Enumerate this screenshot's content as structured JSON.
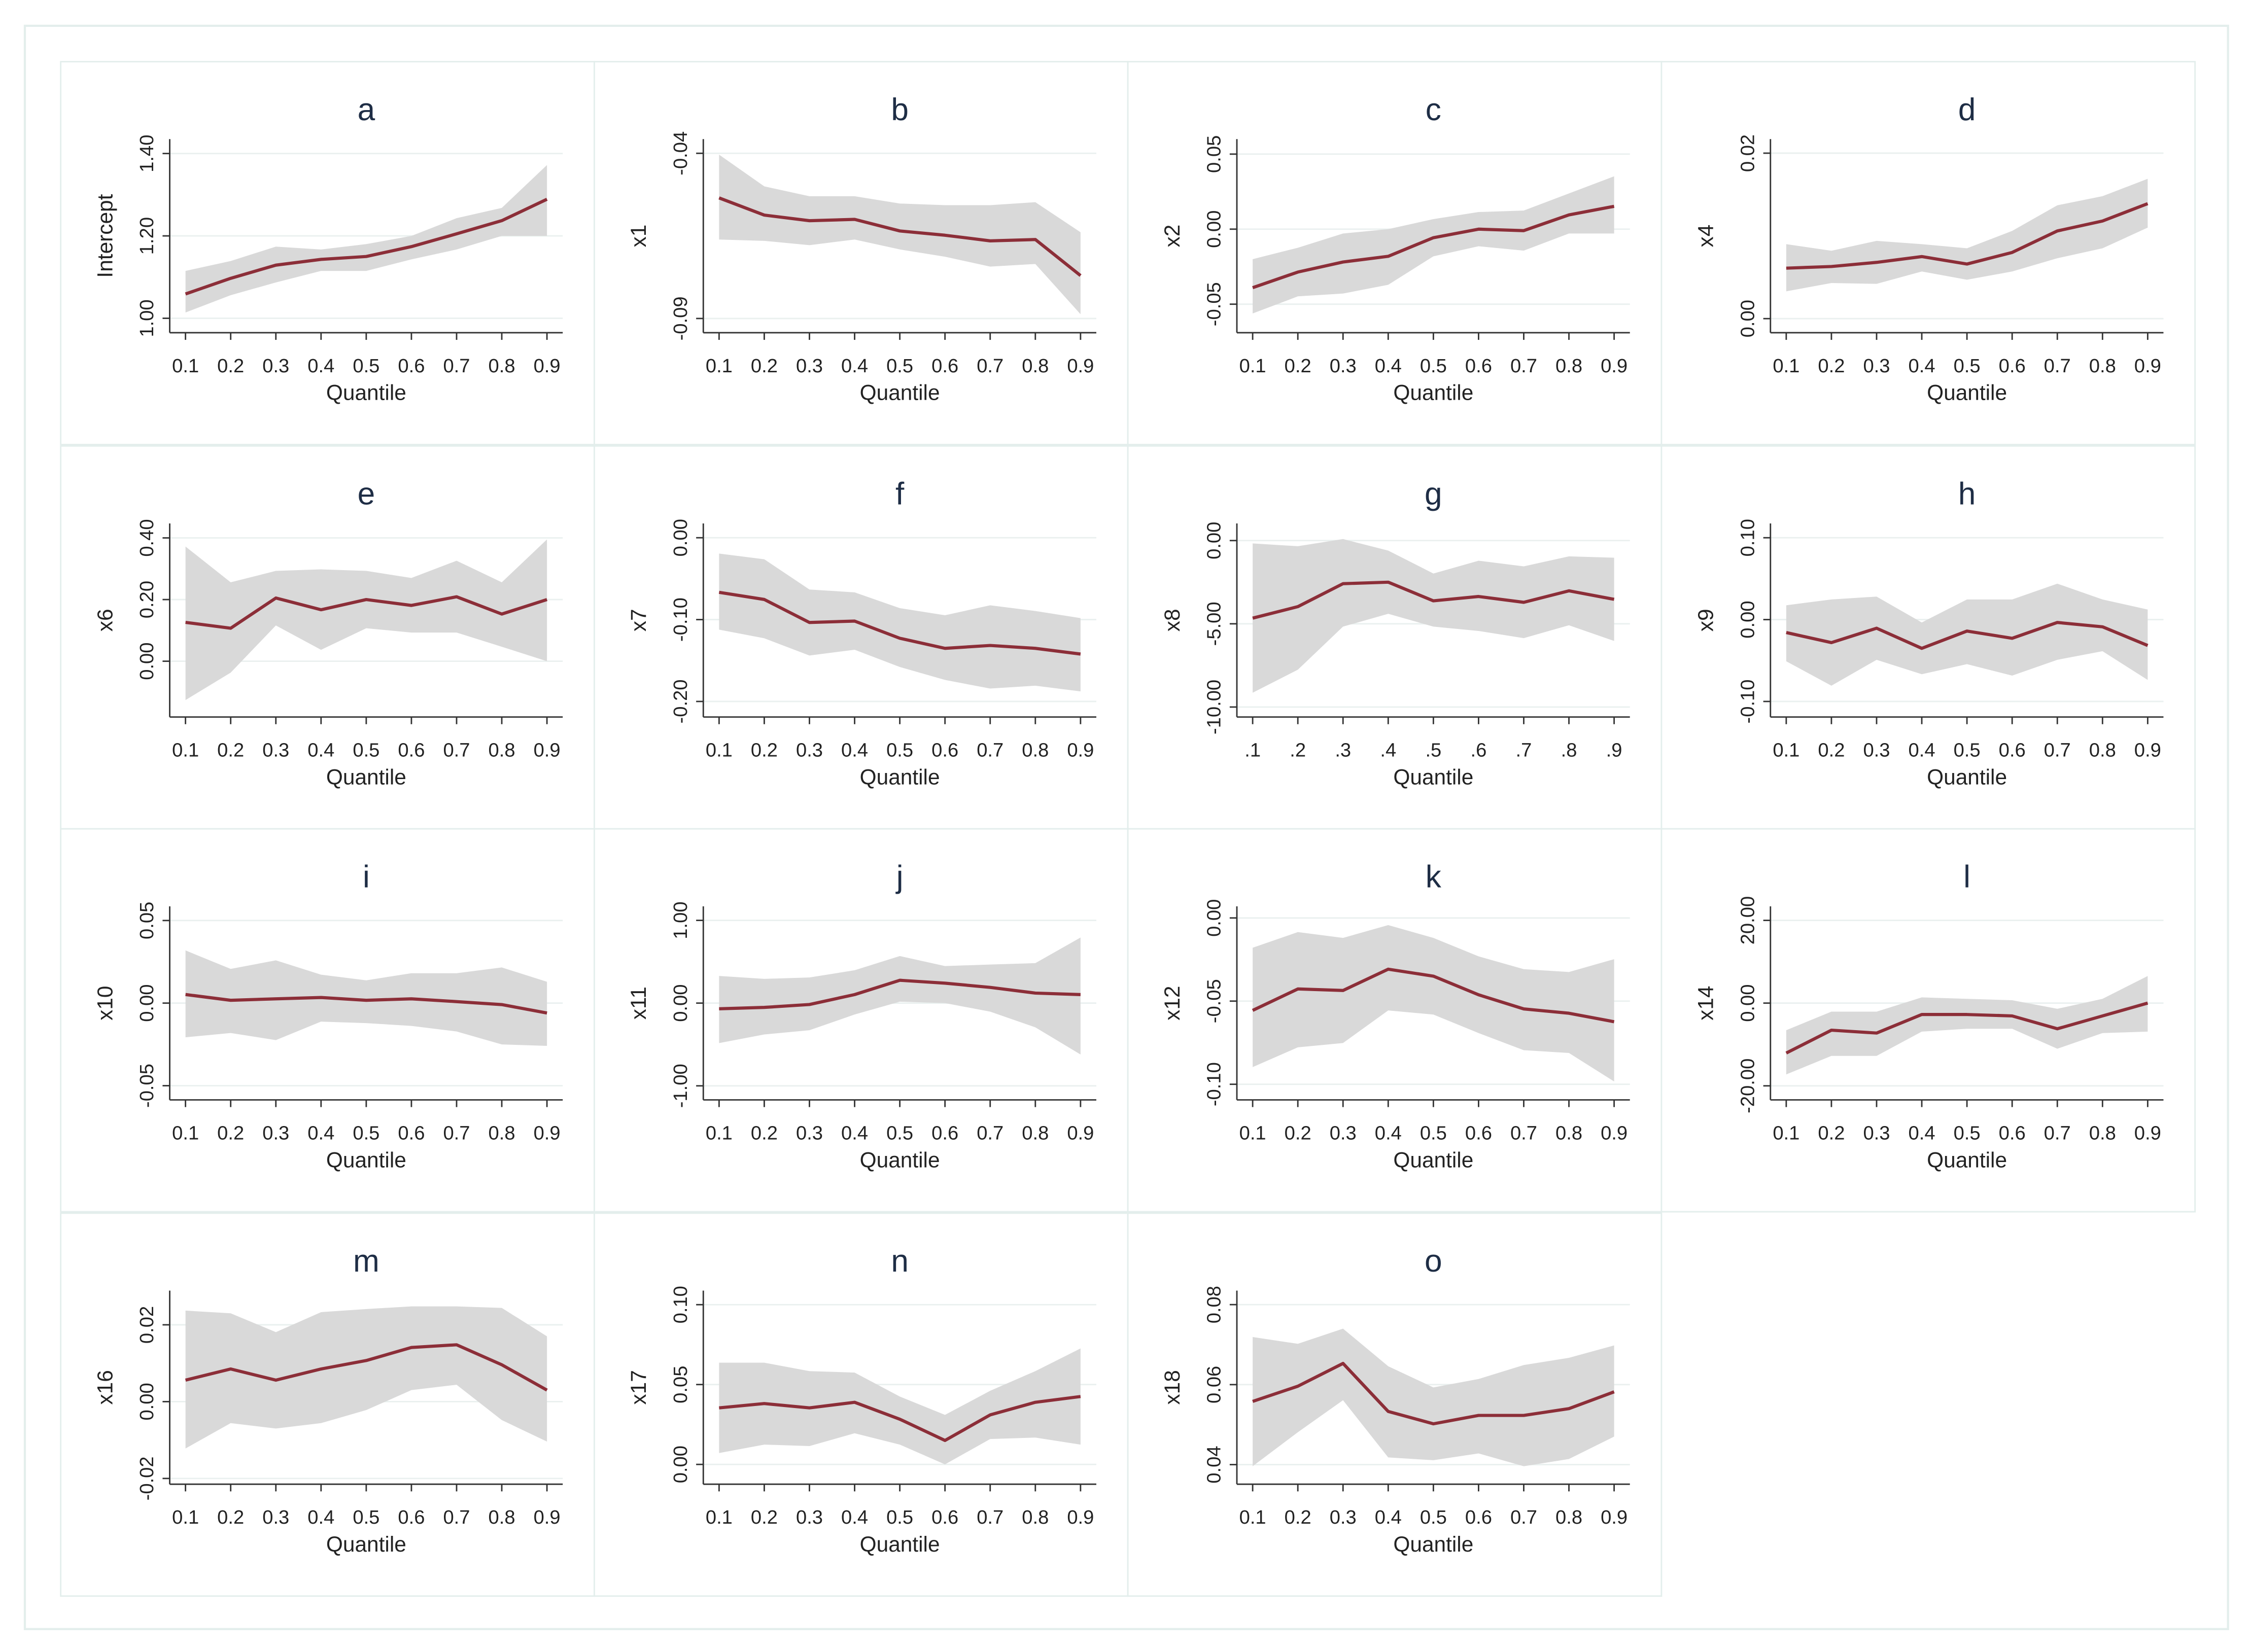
{
  "chart_data": [
    {
      "type": "line",
      "title": "a",
      "ylabel": "Intercept",
      "xlabel": "Quantile",
      "categories": [
        "0.1",
        "0.2",
        "0.3",
        "0.4",
        "0.5",
        "0.6",
        "0.7",
        "0.8",
        "0.9"
      ],
      "values": [
        1.059,
        1.097,
        1.129,
        1.143,
        1.15,
        1.174,
        1.205,
        1.237,
        1.289
      ],
      "lower": [
        1.014,
        1.056,
        1.087,
        1.115,
        1.115,
        1.143,
        1.167,
        1.2,
        1.2
      ],
      "upper": [
        1.115,
        1.139,
        1.174,
        1.167,
        1.18,
        1.2,
        1.243,
        1.268,
        1.372
      ],
      "color": "#8c2e38",
      "band_color": "#d9d9d9",
      "ylim": [
        0.965,
        1.435
      ],
      "yticks": [
        {
          "value": 1,
          "label": "1.00"
        },
        {
          "value": 1.2,
          "label": "1.20"
        },
        {
          "value": 1.4,
          "label": "1.40"
        }
      ],
      "grid": true
    },
    {
      "type": "line",
      "title": "b",
      "ylabel": "x1",
      "xlabel": "Quantile",
      "categories": [
        "0.1",
        "0.2",
        "0.3",
        "0.4",
        "0.5",
        "0.6",
        "0.7",
        "0.8",
        "0.9"
      ],
      "values": [
        -0.0535,
        -0.0587,
        -0.0604,
        -0.06,
        -0.0635,
        -0.0648,
        -0.0665,
        -0.0661,
        -0.077
      ],
      "lower": [
        -0.0661,
        -0.0665,
        -0.0678,
        -0.0661,
        -0.0691,
        -0.0713,
        -0.0743,
        -0.0735,
        -0.0887
      ],
      "upper": [
        -0.0404,
        -0.05,
        -0.053,
        -0.053,
        -0.0552,
        -0.0557,
        -0.0557,
        -0.0548,
        -0.0639
      ],
      "color": "#8c2e38",
      "band_color": "#d9d9d9",
      "ylim": [
        -0.0943,
        -0.0357
      ],
      "yticks": [
        -0.09,
        -0.04
      ],
      "grid": true
    },
    {
      "type": "line",
      "title": "c",
      "ylabel": "x2",
      "xlabel": "Quantile",
      "categories": [
        "0.1",
        "0.2",
        "0.3",
        "0.4",
        "0.5",
        "0.6",
        "0.7",
        "0.8",
        "0.9"
      ],
      "values": [
        -0.039,
        -0.0286,
        -0.0219,
        -0.0181,
        -0.0057,
        0,
        -0.001,
        0.0095,
        0.0152
      ],
      "lower": [
        -0.0562,
        -0.0448,
        -0.0429,
        -0.0371,
        -0.0181,
        -0.0114,
        -0.0143,
        -0.0029,
        -0.0029
      ],
      "upper": [
        -0.02,
        -0.0124,
        -0.0029,
        0,
        0.0067,
        0.0114,
        0.0124,
        0.0238,
        0.0352
      ],
      "color": "#8c2e38",
      "band_color": "#d9d9d9",
      "ylim": [
        -0.069,
        0.06
      ],
      "yticks": [
        -0.05,
        {
          "value": 0,
          "label": "0.00"
        },
        0.05
      ],
      "grid": true
    },
    {
      "type": "line",
      "title": "d",
      "ylabel": "x4",
      "xlabel": "Quantile",
      "categories": [
        "0.1",
        "0.2",
        "0.3",
        "0.4",
        "0.5",
        "0.6",
        "0.7",
        "0.8",
        "0.9"
      ],
      "values": [
        0.0061,
        0.0063,
        0.0068,
        0.0075,
        0.0066,
        0.008,
        0.0106,
        0.0118,
        0.0139
      ],
      "lower": [
        0.0033,
        0.0043,
        0.0042,
        0.0057,
        0.0047,
        0.0057,
        0.0073,
        0.0085,
        0.011
      ],
      "upper": [
        0.009,
        0.0082,
        0.0094,
        0.009,
        0.0085,
        0.0106,
        0.0137,
        0.0148,
        0.0169
      ],
      "color": "#8c2e38",
      "band_color": "#d9d9d9",
      "ylim": [
        -0.0017,
        0.0217
      ],
      "yticks": [
        {
          "value": 0,
          "label": "0.00"
        },
        0.02
      ],
      "grid": true
    },
    {
      "type": "line",
      "title": "e",
      "ylabel": "x6",
      "xlabel": "Quantile",
      "categories": [
        "0.1",
        "0.2",
        "0.3",
        "0.4",
        "0.5",
        "0.6",
        "0.7",
        "0.8",
        "0.9"
      ],
      "values": [
        0.126,
        0.107,
        0.205,
        0.167,
        0.2,
        0.181,
        0.209,
        0.153,
        0.2
      ],
      "lower": [
        -0.126,
        -0.037,
        0.116,
        0.037,
        0.107,
        0.093,
        0.093,
        0.047,
        0
      ],
      "upper": [
        0.372,
        0.256,
        0.293,
        0.298,
        0.293,
        0.27,
        0.326,
        0.256,
        0.395
      ],
      "color": "#8c2e38",
      "band_color": "#d9d9d9",
      "ylim": [
        -0.181,
        0.447
      ],
      "yticks": [
        {
          "value": 0,
          "label": "0.00"
        },
        {
          "value": 0.2,
          "label": "0.20"
        },
        {
          "value": 0.4,
          "label": "0.40"
        }
      ],
      "grid": true
    },
    {
      "type": "line",
      "title": "f",
      "ylabel": "x7",
      "xlabel": "Quantile",
      "categories": [
        "0.1",
        "0.2",
        "0.3",
        "0.4",
        "0.5",
        "0.6",
        "0.7",
        "0.8",
        "0.9"
      ],
      "values": [
        -0.0667,
        -0.0754,
        -0.1035,
        -0.1018,
        -0.1228,
        -0.1351,
        -0.1316,
        -0.1351,
        -0.1421
      ],
      "lower": [
        -0.1123,
        -0.1228,
        -0.1439,
        -0.1368,
        -0.1579,
        -0.1737,
        -0.1842,
        -0.1807,
        -0.1877
      ],
      "upper": [
        -0.0193,
        -0.0263,
        -0.0632,
        -0.0667,
        -0.086,
        -0.0947,
        -0.0825,
        -0.0895,
        -0.0982
      ],
      "color": "#8c2e38",
      "band_color": "#d9d9d9",
      "ylim": [
        -0.219,
        0.0175
      ],
      "yticks": [
        {
          "value": -0.2,
          "label": "-0.20"
        },
        {
          "value": -0.1,
          "label": "-0.10"
        },
        {
          "value": 0,
          "label": "0.00"
        }
      ],
      "grid": true
    },
    {
      "type": "line",
      "title": "g",
      "ylabel": "x8",
      "xlabel": "Quantile",
      "categories": [
        ".1",
        ".2",
        ".3",
        ".4",
        ".5",
        ".6",
        ".7",
        ".8",
        ".9"
      ],
      "values": [
        -4.66,
        -3.97,
        -2.59,
        -2.5,
        -3.62,
        -3.36,
        -3.71,
        -3.02,
        -3.53
      ],
      "lower": [
        -9.14,
        -7.76,
        -5.17,
        -4.4,
        -5.17,
        -5.43,
        -5.86,
        -5.09,
        -6.03
      ],
      "upper": [
        -0.17,
        -0.34,
        0.09,
        -0.6,
        -1.98,
        -1.21,
        -1.55,
        -0.95,
        -1.03
      ],
      "color": "#8c2e38",
      "band_color": "#d9d9d9",
      "ylim": [
        -10.6,
        1.03
      ],
      "yticks": [
        {
          "value": -10,
          "label": "-10.00"
        },
        {
          "value": -5,
          "label": "-5.00"
        },
        {
          "value": 0,
          "label": "0.00"
        }
      ],
      "grid": true
    },
    {
      "type": "line",
      "title": "h",
      "ylabel": "x9",
      "xlabel": "Quantile",
      "categories": [
        "0.1",
        "0.2",
        "0.3",
        "0.4",
        "0.5",
        "0.6",
        "0.7",
        "0.8",
        "0.9"
      ],
      "values": [
        -0.0158,
        -0.0281,
        -0.0105,
        -0.0351,
        -0.014,
        -0.0228,
        -0.0035,
        -0.0088,
        -0.0316
      ],
      "lower": [
        -0.0509,
        -0.0807,
        -0.0491,
        -0.0667,
        -0.0544,
        -0.0684,
        -0.0491,
        -0.0386,
        -0.0737
      ],
      "upper": [
        0.0175,
        0.0246,
        0.0281,
        -0.0035,
        0.0246,
        0.0246,
        0.0439,
        0.0246,
        0.0123
      ],
      "color": "#8c2e38",
      "band_color": "#d9d9d9",
      "ylim": [
        -0.119,
        0.1175
      ],
      "yticks": [
        {
          "value": -0.1,
          "label": "-0.10"
        },
        {
          "value": 0,
          "label": "0.00"
        },
        {
          "value": 0.1,
          "label": "0.10"
        }
      ],
      "grid": true
    },
    {
      "type": "line",
      "title": "i",
      "ylabel": "x10",
      "xlabel": "Quantile",
      "categories": [
        "0.1",
        "0.2",
        "0.3",
        "0.4",
        "0.5",
        "0.6",
        "0.7",
        "0.8",
        "0.9"
      ],
      "values": [
        0.0052,
        0.0017,
        0.0026,
        0.0034,
        0.0017,
        0.0026,
        0.0009,
        -0.0009,
        -0.006
      ],
      "lower": [
        -0.0207,
        -0.0181,
        -0.0224,
        -0.0112,
        -0.0121,
        -0.0138,
        -0.0172,
        -0.025,
        -0.0259
      ],
      "upper": [
        0.0319,
        0.0207,
        0.0259,
        0.0172,
        0.0138,
        0.0181,
        0.0181,
        0.0216,
        0.0129
      ],
      "color": "#8c2e38",
      "band_color": "#d9d9d9",
      "ylim": [
        -0.0586,
        0.0586
      ],
      "yticks": [
        -0.05,
        {
          "value": 0,
          "label": "0.00"
        },
        0.05
      ],
      "grid": true
    },
    {
      "type": "line",
      "title": "j",
      "ylabel": "x11",
      "xlabel": "Quantile",
      "categories": [
        "0.1",
        "0.2",
        "0.3",
        "0.4",
        "0.5",
        "0.6",
        "0.7",
        "0.8",
        "0.9"
      ],
      "values": [
        -0.069,
        -0.052,
        -0.017,
        0.103,
        0.276,
        0.241,
        0.19,
        0.121,
        0.103
      ],
      "lower": [
        -0.483,
        -0.379,
        -0.328,
        -0.138,
        0.017,
        0,
        -0.103,
        -0.293,
        -0.621
      ],
      "upper": [
        0.328,
        0.293,
        0.31,
        0.397,
        0.569,
        0.448,
        0.466,
        0.483,
        0.793
      ],
      "color": "#8c2e38",
      "band_color": "#d9d9d9",
      "ylim": [
        -1.17,
        1.17
      ],
      "yticks": [
        {
          "value": -1,
          "label": "-1.00"
        },
        {
          "value": 0,
          "label": "0.00"
        },
        {
          "value": 1,
          "label": "1.00"
        }
      ],
      "grid": true
    },
    {
      "type": "line",
      "title": "k",
      "ylabel": "x12",
      "xlabel": "Quantile",
      "categories": [
        "0.1",
        "0.2",
        "0.3",
        "0.4",
        "0.5",
        "0.6",
        "0.7",
        "0.8",
        "0.9"
      ],
      "values": [
        -0.0556,
        -0.0427,
        -0.0436,
        -0.0308,
        -0.035,
        -0.0462,
        -0.0547,
        -0.0573,
        -0.0624
      ],
      "lower": [
        -0.0897,
        -0.0778,
        -0.0752,
        -0.0556,
        -0.0581,
        -0.0692,
        -0.0795,
        -0.0812,
        -0.0983
      ],
      "upper": [
        -0.0179,
        -0.0085,
        -0.012,
        -0.0043,
        -0.012,
        -0.0231,
        -0.0308,
        -0.0325,
        -0.0248
      ],
      "color": "#8c2e38",
      "band_color": "#d9d9d9",
      "ylim": [
        -0.1094,
        0.007
      ],
      "yticks": [
        {
          "value": -0.1,
          "label": "-0.10"
        },
        -0.05,
        {
          "value": 0,
          "label": "0.00"
        }
      ],
      "grid": true
    },
    {
      "type": "line",
      "title": "l",
      "ylabel": "x14",
      "xlabel": "Quantile",
      "categories": [
        "0.1",
        "0.2",
        "0.3",
        "0.4",
        "0.5",
        "0.6",
        "0.7",
        "0.8",
        "0.9"
      ],
      "values": [
        -12.07,
        -6.55,
        -7.24,
        -2.76,
        -2.76,
        -3.1,
        -6.21,
        -3.1,
        0
      ],
      "lower": [
        -17.24,
        -12.76,
        -12.76,
        -6.9,
        -6.21,
        -6.21,
        -11.03,
        -7.24,
        -6.9
      ],
      "upper": [
        -6.55,
        -2.07,
        -2.07,
        1.38,
        1.03,
        0.69,
        -1.38,
        1.03,
        6.55
      ],
      "color": "#8c2e38",
      "band_color": "#d9d9d9",
      "ylim": [
        -23.4,
        23.4
      ],
      "yticks": [
        {
          "value": -20,
          "label": "-20.00"
        },
        {
          "value": 0,
          "label": "0.00"
        },
        {
          "value": 20,
          "label": "20.00"
        }
      ],
      "grid": true
    },
    {
      "type": "line",
      "title": "m",
      "ylabel": "x16",
      "xlabel": "Quantile",
      "categories": [
        "0.1",
        "0.2",
        "0.3",
        "0.4",
        "0.5",
        "0.6",
        "0.7",
        "0.8",
        "0.9"
      ],
      "values": [
        0.0056,
        0.0085,
        0.0056,
        0.0085,
        0.0107,
        0.0141,
        0.0148,
        0.0096,
        0.003
      ],
      "lower": [
        -0.0122,
        -0.0056,
        -0.007,
        -0.0056,
        -0.0022,
        0.003,
        0.0044,
        -0.0048,
        -0.0104
      ],
      "upper": [
        0.0237,
        0.023,
        0.0181,
        0.0233,
        0.0241,
        0.0248,
        0.0248,
        0.0244,
        0.017
      ],
      "color": "#8c2e38",
      "band_color": "#d9d9d9",
      "ylim": [
        -0.0215,
        0.0289
      ],
      "yticks": [
        -0.02,
        {
          "value": 0,
          "label": "0.00"
        },
        0.02
      ],
      "grid": true
    },
    {
      "type": "line",
      "title": "n",
      "ylabel": "x17",
      "xlabel": "Quantile",
      "categories": [
        "0.1",
        "0.2",
        "0.3",
        "0.4",
        "0.5",
        "0.6",
        "0.7",
        "0.8",
        "0.9"
      ],
      "values": [
        0.0354,
        0.0381,
        0.0354,
        0.0389,
        0.0283,
        0.015,
        0.031,
        0.0389,
        0.0425
      ],
      "lower": [
        0.0071,
        0.0124,
        0.0115,
        0.0195,
        0.0124,
        0,
        0.0159,
        0.0168,
        0.0124
      ],
      "upper": [
        0.0637,
        0.0637,
        0.0584,
        0.0575,
        0.0425,
        0.031,
        0.0461,
        0.0584,
        0.0726
      ],
      "color": "#8c2e38",
      "band_color": "#d9d9d9",
      "ylim": [
        -0.0124,
        0.1088
      ],
      "yticks": [
        {
          "value": 0,
          "label": "0.00"
        },
        0.05,
        {
          "value": 0.1,
          "label": "0.10"
        }
      ],
      "grid": true
    },
    {
      "type": "line",
      "title": "o",
      "ylabel": "x18",
      "xlabel": "Quantile",
      "categories": [
        "0.1",
        "0.2",
        "0.3",
        "0.4",
        "0.5",
        "0.6",
        "0.7",
        "0.8",
        "0.9"
      ],
      "values": [
        0.0558,
        0.0596,
        0.0653,
        0.0533,
        0.0502,
        0.0523,
        0.0523,
        0.054,
        0.0582
      ],
      "lower": [
        0.0396,
        0.0481,
        0.0561,
        0.0418,
        0.0411,
        0.0428,
        0.0396,
        0.0414,
        0.047
      ],
      "upper": [
        0.0719,
        0.0702,
        0.074,
        0.0646,
        0.0593,
        0.0614,
        0.0649,
        0.0667,
        0.0698
      ],
      "color": "#8c2e38",
      "band_color": "#d9d9d9",
      "ylim": [
        0.0351,
        0.0835
      ],
      "yticks": [
        0.04,
        0.06,
        0.08
      ],
      "grid": true
    }
  ]
}
